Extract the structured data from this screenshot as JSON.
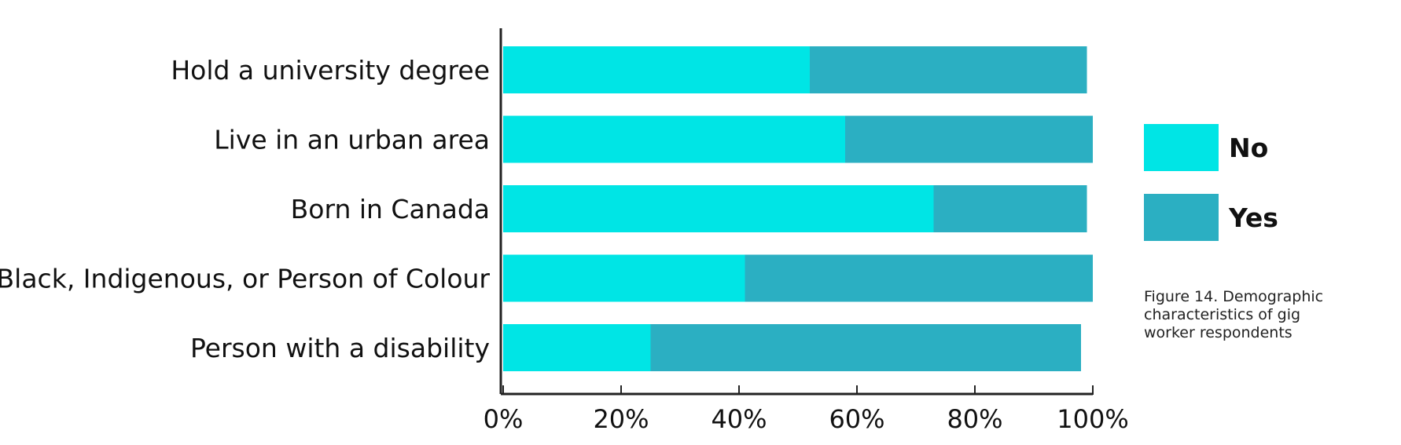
{
  "caption": "Figure 14. Demographic characteristics of gig worker respondents",
  "chart_data": {
    "type": "bar",
    "orientation": "horizontal",
    "stacked": true,
    "categories": [
      "Hold a university degree",
      "Live in an urban area",
      "Born in Canada",
      "Black, Indigenous, or Person of Colour",
      "Person with a disability"
    ],
    "series": [
      {
        "name": "No",
        "color": "#00E5E5",
        "values": [
          52,
          58,
          73,
          41,
          25
        ]
      },
      {
        "name": "Yes",
        "color": "#2BAFC2",
        "values": [
          47,
          42,
          26,
          59,
          73
        ]
      }
    ],
    "x_ticks": [
      "0%",
      "20%",
      "40%",
      "60%",
      "80%",
      "100%"
    ],
    "xlim": [
      0,
      100
    ],
    "grid": false,
    "legend_position": "right"
  }
}
